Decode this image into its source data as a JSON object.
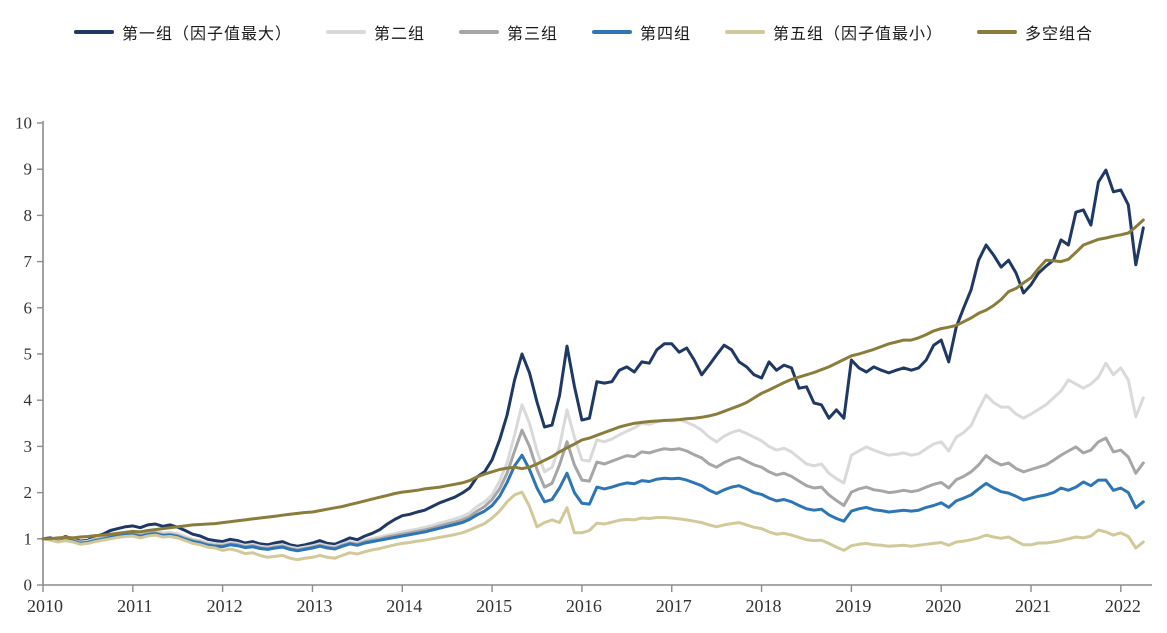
{
  "page": {
    "background": "#ffffff"
  },
  "chart_data": {
    "type": "line",
    "title": "",
    "legend_position": "top",
    "grid": false,
    "axis_color": "#8c8c8c",
    "tick_label_color": "#333333",
    "x_axis": {
      "tick_labels": [
        "2010",
        "2011",
        "2012",
        "2013",
        "2014",
        "2015",
        "2016",
        "2017",
        "2018",
        "2019",
        "2020",
        "2021",
        "2022"
      ],
      "frequency": "monthly",
      "start": "2010-01",
      "end": "2022-04"
    },
    "y_axis": {
      "min": 0,
      "max": 10,
      "tick_step": 1,
      "tick_labels": [
        "0",
        "1",
        "2",
        "3",
        "4",
        "5",
        "6",
        "7",
        "8",
        "9",
        "10"
      ]
    },
    "series": [
      {
        "name": "第一组（因子值最大）",
        "color": "#1F3864",
        "width": 3,
        "values": [
          1.0,
          1.02,
          0.98,
          1.05,
          1.0,
          0.95,
          0.97,
          1.05,
          1.1,
          1.18,
          1.22,
          1.26,
          1.28,
          1.24,
          1.3,
          1.32,
          1.27,
          1.3,
          1.25,
          1.18,
          1.1,
          1.06,
          0.99,
          0.96,
          0.94,
          0.99,
          0.96,
          0.91,
          0.94,
          0.89,
          0.87,
          0.91,
          0.94,
          0.87,
          0.84,
          0.87,
          0.91,
          0.96,
          0.9,
          0.88,
          0.95,
          1.02,
          0.98,
          1.06,
          1.12,
          1.2,
          1.32,
          1.42,
          1.5,
          1.53,
          1.58,
          1.62,
          1.7,
          1.78,
          1.84,
          1.9,
          1.99,
          2.1,
          2.34,
          2.45,
          2.71,
          3.14,
          3.68,
          4.44,
          5.0,
          4.59,
          3.96,
          3.42,
          3.46,
          4.1,
          5.17,
          4.3,
          3.57,
          3.61,
          4.4,
          4.37,
          4.4,
          4.65,
          4.72,
          4.61,
          4.83,
          4.8,
          5.09,
          5.22,
          5.22,
          5.04,
          5.13,
          4.87,
          4.55,
          4.76,
          4.98,
          5.19,
          5.09,
          4.83,
          4.72,
          4.55,
          4.48,
          4.83,
          4.65,
          4.76,
          4.7,
          4.26,
          4.29,
          3.94,
          3.9,
          3.61,
          3.79,
          3.61,
          4.87,
          4.7,
          4.61,
          4.72,
          4.65,
          4.59,
          4.65,
          4.7,
          4.65,
          4.7,
          4.87,
          5.19,
          5.3,
          4.83,
          5.58,
          6.0,
          6.39,
          7.03,
          7.36,
          7.14,
          6.88,
          7.03,
          6.75,
          6.32,
          6.5,
          6.75,
          6.9,
          7.03,
          7.47,
          7.36,
          8.07,
          8.12,
          7.79,
          8.72,
          8.98,
          8.51,
          8.55,
          8.23,
          6.93,
          7.73
        ]
      },
      {
        "name": "第二组",
        "color": "#D9D9D9",
        "width": 3,
        "values": [
          1.0,
          0.99,
          0.96,
          1.0,
          0.97,
          0.93,
          0.95,
          1.0,
          1.04,
          1.08,
          1.11,
          1.14,
          1.15,
          1.11,
          1.15,
          1.17,
          1.13,
          1.14,
          1.11,
          1.05,
          0.99,
          0.96,
          0.91,
          0.89,
          0.88,
          0.92,
          0.9,
          0.86,
          0.88,
          0.84,
          0.82,
          0.85,
          0.87,
          0.82,
          0.79,
          0.82,
          0.85,
          0.89,
          0.85,
          0.83,
          0.89,
          0.94,
          0.91,
          0.97,
          1.01,
          1.04,
          1.08,
          1.11,
          1.15,
          1.18,
          1.21,
          1.25,
          1.29,
          1.34,
          1.38,
          1.43,
          1.48,
          1.56,
          1.7,
          1.8,
          1.95,
          2.25,
          2.65,
          3.25,
          3.9,
          3.5,
          2.9,
          2.45,
          2.55,
          3.0,
          3.79,
          3.2,
          2.71,
          2.68,
          3.14,
          3.1,
          3.16,
          3.25,
          3.33,
          3.4,
          3.5,
          3.48,
          3.53,
          3.57,
          3.55,
          3.58,
          3.52,
          3.45,
          3.35,
          3.2,
          3.1,
          3.22,
          3.3,
          3.35,
          3.28,
          3.2,
          3.12,
          3.0,
          2.92,
          2.96,
          2.88,
          2.75,
          2.62,
          2.58,
          2.62,
          2.42,
          2.3,
          2.21,
          2.81,
          2.9,
          2.99,
          2.92,
          2.86,
          2.81,
          2.83,
          2.86,
          2.81,
          2.84,
          2.95,
          3.05,
          3.1,
          2.9,
          3.2,
          3.3,
          3.45,
          3.8,
          4.11,
          3.95,
          3.85,
          3.85,
          3.7,
          3.61,
          3.7,
          3.8,
          3.9,
          4.05,
          4.2,
          4.44,
          4.35,
          4.26,
          4.35,
          4.5,
          4.8,
          4.55,
          4.7,
          4.44,
          3.64,
          4.05
        ]
      },
      {
        "name": "第三组",
        "color": "#A6A6A6",
        "width": 3,
        "values": [
          1.0,
          0.99,
          0.95,
          0.99,
          0.96,
          0.92,
          0.93,
          0.98,
          1.01,
          1.05,
          1.08,
          1.1,
          1.11,
          1.07,
          1.11,
          1.13,
          1.09,
          1.1,
          1.07,
          1.01,
          0.96,
          0.93,
          0.88,
          0.86,
          0.85,
          0.89,
          0.87,
          0.83,
          0.85,
          0.81,
          0.79,
          0.82,
          0.84,
          0.79,
          0.76,
          0.79,
          0.82,
          0.86,
          0.82,
          0.8,
          0.86,
          0.91,
          0.88,
          0.94,
          0.97,
          1.0,
          1.04,
          1.07,
          1.1,
          1.13,
          1.16,
          1.19,
          1.23,
          1.28,
          1.32,
          1.36,
          1.41,
          1.48,
          1.6,
          1.7,
          1.85,
          2.08,
          2.42,
          2.9,
          3.35,
          3.0,
          2.5,
          2.12,
          2.2,
          2.6,
          3.1,
          2.6,
          2.27,
          2.25,
          2.66,
          2.62,
          2.68,
          2.74,
          2.8,
          2.78,
          2.88,
          2.86,
          2.91,
          2.95,
          2.93,
          2.95,
          2.9,
          2.82,
          2.75,
          2.62,
          2.55,
          2.65,
          2.72,
          2.76,
          2.68,
          2.6,
          2.55,
          2.45,
          2.38,
          2.42,
          2.35,
          2.25,
          2.15,
          2.1,
          2.12,
          1.95,
          1.83,
          1.72,
          2.01,
          2.08,
          2.12,
          2.06,
          2.04,
          2.0,
          2.02,
          2.05,
          2.02,
          2.05,
          2.12,
          2.18,
          2.22,
          2.1,
          2.28,
          2.35,
          2.45,
          2.6,
          2.8,
          2.68,
          2.6,
          2.64,
          2.52,
          2.45,
          2.5,
          2.55,
          2.6,
          2.7,
          2.81,
          2.9,
          2.99,
          2.86,
          2.92,
          3.1,
          3.18,
          2.88,
          2.92,
          2.77,
          2.42,
          2.64
        ]
      },
      {
        "name": "第四组",
        "color": "#2E75B6",
        "width": 3,
        "values": [
          1.0,
          0.98,
          0.94,
          0.98,
          0.95,
          0.9,
          0.92,
          0.96,
          0.99,
          1.03,
          1.06,
          1.08,
          1.09,
          1.05,
          1.09,
          1.11,
          1.07,
          1.08,
          1.05,
          0.99,
          0.94,
          0.91,
          0.86,
          0.84,
          0.83,
          0.87,
          0.85,
          0.81,
          0.83,
          0.79,
          0.77,
          0.8,
          0.82,
          0.77,
          0.74,
          0.77,
          0.8,
          0.84,
          0.8,
          0.78,
          0.84,
          0.89,
          0.86,
          0.91,
          0.94,
          0.97,
          1.0,
          1.03,
          1.06,
          1.09,
          1.12,
          1.15,
          1.19,
          1.23,
          1.27,
          1.31,
          1.35,
          1.42,
          1.52,
          1.6,
          1.72,
          1.92,
          2.22,
          2.58,
          2.81,
          2.5,
          2.1,
          1.8,
          1.85,
          2.1,
          2.42,
          2.0,
          1.77,
          1.75,
          2.12,
          2.08,
          2.12,
          2.17,
          2.21,
          2.19,
          2.26,
          2.24,
          2.29,
          2.31,
          2.3,
          2.31,
          2.27,
          2.21,
          2.15,
          2.05,
          1.98,
          2.06,
          2.12,
          2.15,
          2.08,
          2.0,
          1.96,
          1.88,
          1.82,
          1.85,
          1.8,
          1.72,
          1.65,
          1.62,
          1.64,
          1.52,
          1.44,
          1.38,
          1.6,
          1.65,
          1.68,
          1.63,
          1.61,
          1.58,
          1.6,
          1.62,
          1.6,
          1.62,
          1.68,
          1.72,
          1.78,
          1.68,
          1.82,
          1.88,
          1.95,
          2.08,
          2.2,
          2.1,
          2.02,
          1.99,
          1.92,
          1.84,
          1.88,
          1.92,
          1.95,
          2.0,
          2.1,
          2.05,
          2.12,
          2.23,
          2.15,
          2.27,
          2.27,
          2.05,
          2.1,
          2.0,
          1.67,
          1.8
        ]
      },
      {
        "name": "第五组（因子值最小）",
        "color": "#D2C99A",
        "width": 3,
        "values": [
          1.0,
          0.97,
          0.93,
          0.96,
          0.93,
          0.88,
          0.9,
          0.94,
          0.97,
          1.0,
          1.03,
          1.05,
          1.06,
          1.02,
          1.06,
          1.08,
          1.04,
          1.05,
          1.02,
          0.96,
          0.9,
          0.87,
          0.82,
          0.8,
          0.75,
          0.78,
          0.74,
          0.68,
          0.7,
          0.64,
          0.6,
          0.62,
          0.64,
          0.58,
          0.55,
          0.58,
          0.6,
          0.64,
          0.6,
          0.58,
          0.64,
          0.7,
          0.67,
          0.72,
          0.76,
          0.79,
          0.83,
          0.87,
          0.9,
          0.92,
          0.95,
          0.97,
          1.0,
          1.03,
          1.06,
          1.09,
          1.13,
          1.19,
          1.26,
          1.33,
          1.45,
          1.6,
          1.8,
          1.95,
          2.01,
          1.7,
          1.26,
          1.35,
          1.41,
          1.35,
          1.67,
          1.13,
          1.13,
          1.18,
          1.34,
          1.32,
          1.36,
          1.4,
          1.42,
          1.41,
          1.45,
          1.44,
          1.46,
          1.46,
          1.45,
          1.43,
          1.41,
          1.38,
          1.35,
          1.3,
          1.26,
          1.3,
          1.33,
          1.35,
          1.3,
          1.25,
          1.22,
          1.15,
          1.1,
          1.12,
          1.08,
          1.03,
          0.98,
          0.96,
          0.97,
          0.9,
          0.82,
          0.75,
          0.85,
          0.88,
          0.9,
          0.87,
          0.86,
          0.84,
          0.85,
          0.86,
          0.84,
          0.86,
          0.88,
          0.9,
          0.92,
          0.86,
          0.93,
          0.95,
          0.98,
          1.02,
          1.08,
          1.04,
          1.01,
          1.04,
          0.95,
          0.87,
          0.87,
          0.91,
          0.91,
          0.93,
          0.96,
          1.0,
          1.04,
          1.02,
          1.06,
          1.19,
          1.15,
          1.08,
          1.13,
          1.05,
          0.8,
          0.93
        ]
      },
      {
        "name": "多空组合",
        "color": "#8A7D3C",
        "width": 3,
        "values": [
          1.0,
          1.0,
          1.02,
          1.03,
          1.02,
          1.04,
          1.05,
          1.07,
          1.08,
          1.1,
          1.12,
          1.14,
          1.16,
          1.15,
          1.18,
          1.2,
          1.22,
          1.24,
          1.26,
          1.28,
          1.3,
          1.31,
          1.32,
          1.33,
          1.35,
          1.37,
          1.39,
          1.41,
          1.43,
          1.45,
          1.47,
          1.49,
          1.51,
          1.53,
          1.55,
          1.57,
          1.58,
          1.61,
          1.64,
          1.67,
          1.7,
          1.74,
          1.78,
          1.82,
          1.86,
          1.9,
          1.94,
          1.98,
          2.01,
          2.03,
          2.05,
          2.08,
          2.1,
          2.12,
          2.15,
          2.18,
          2.21,
          2.26,
          2.34,
          2.4,
          2.45,
          2.5,
          2.53,
          2.55,
          2.52,
          2.55,
          2.62,
          2.7,
          2.78,
          2.88,
          2.97,
          3.05,
          3.14,
          3.18,
          3.24,
          3.3,
          3.36,
          3.42,
          3.46,
          3.5,
          3.52,
          3.54,
          3.55,
          3.56,
          3.57,
          3.58,
          3.6,
          3.61,
          3.63,
          3.66,
          3.7,
          3.76,
          3.82,
          3.88,
          3.95,
          4.05,
          4.15,
          4.22,
          4.3,
          4.38,
          4.45,
          4.5,
          4.55,
          4.6,
          4.66,
          4.72,
          4.8,
          4.88,
          4.96,
          5.0,
          5.05,
          5.1,
          5.16,
          5.22,
          5.26,
          5.3,
          5.3,
          5.35,
          5.42,
          5.5,
          5.55,
          5.58,
          5.62,
          5.7,
          5.78,
          5.88,
          5.95,
          6.05,
          6.18,
          6.35,
          6.42,
          6.54,
          6.65,
          6.85,
          7.03,
          7.02,
          7.0,
          7.05,
          7.2,
          7.36,
          7.42,
          7.48,
          7.51,
          7.55,
          7.58,
          7.62,
          7.75,
          7.9
        ]
      }
    ]
  }
}
